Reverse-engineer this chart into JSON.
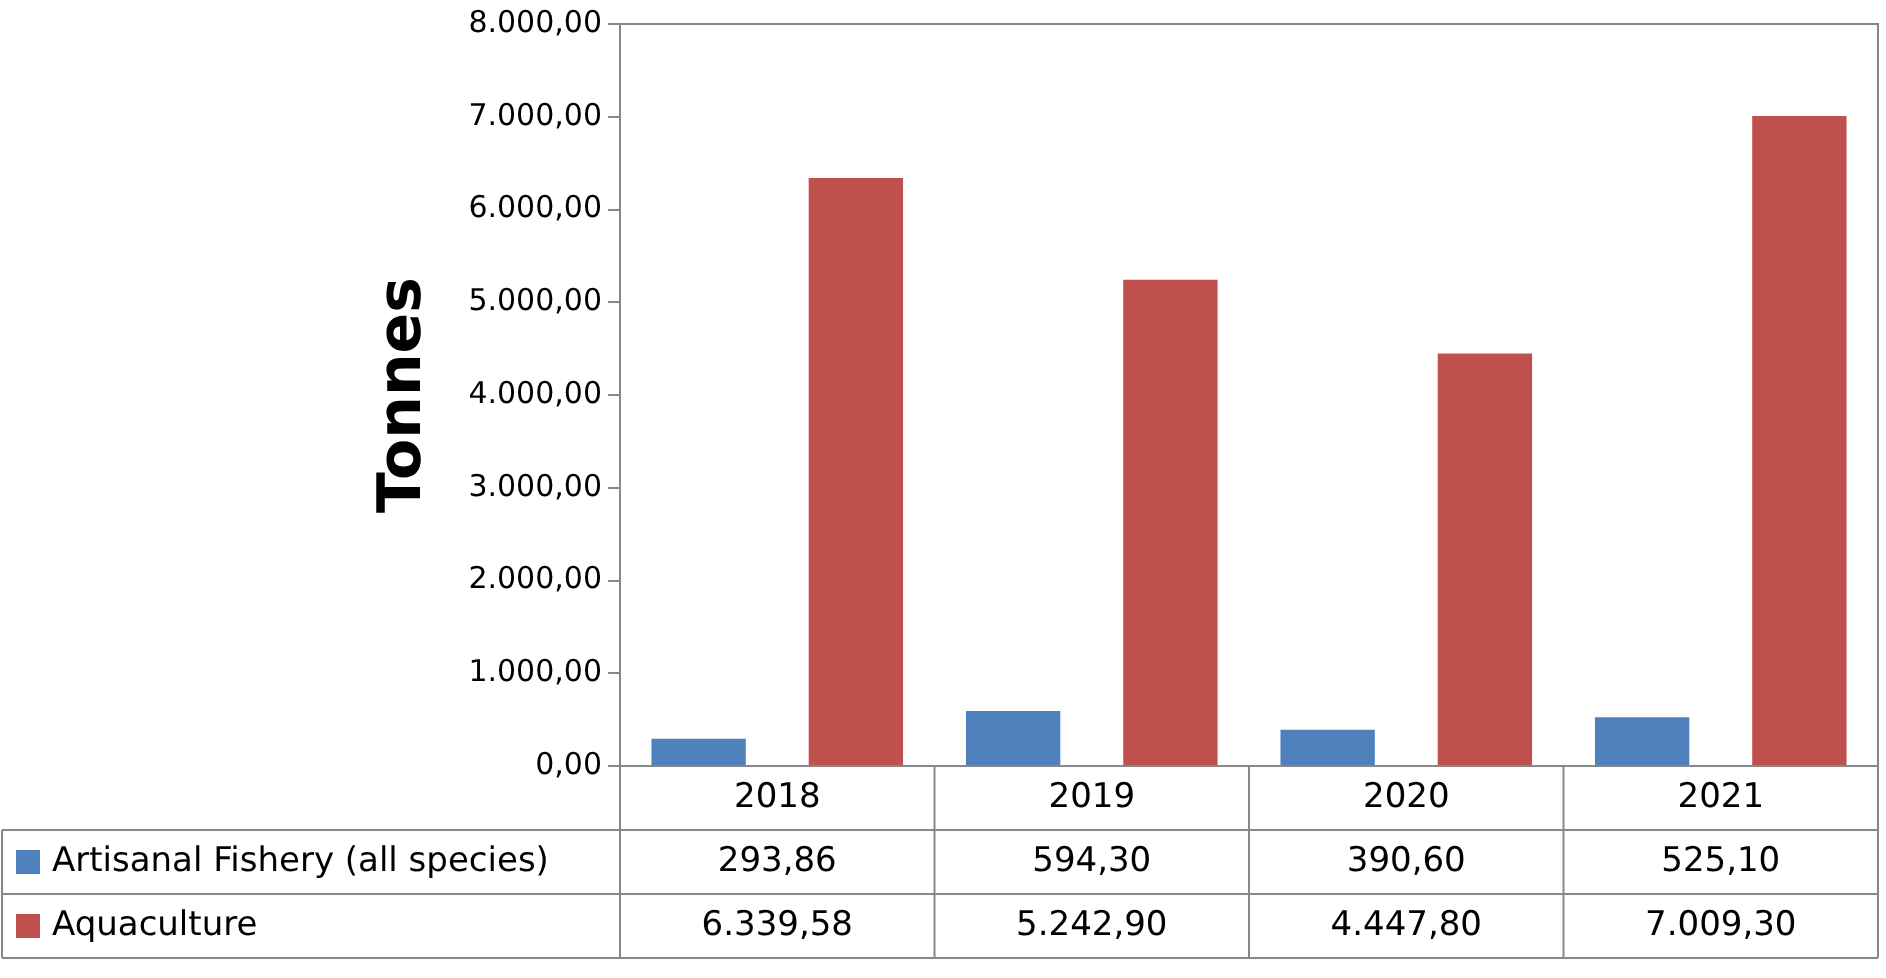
{
  "chart_data": {
    "type": "bar",
    "ylabel": "Tonnes",
    "categories": [
      "2018",
      "2019",
      "2020",
      "2021"
    ],
    "series": [
      {
        "name": "Artisanal Fishery (all species)",
        "color": "#4f81bd",
        "values": [
          293.86,
          594.3,
          390.6,
          525.1
        ],
        "value_labels": [
          "293,86",
          "594,30",
          "390,60",
          "525,10"
        ]
      },
      {
        "name": "Aquaculture",
        "color": "#c0504d",
        "values": [
          6339.58,
          5242.9,
          4447.8,
          7009.3
        ],
        "value_labels": [
          "6.339,58",
          "5.242,90",
          "4.447,80",
          "7.009,30"
        ]
      }
    ],
    "ylim": [
      0,
      8000
    ],
    "yticks": [
      {
        "value": 0,
        "label": "0,00"
      },
      {
        "value": 1000,
        "label": "1.000,00"
      },
      {
        "value": 2000,
        "label": "2.000,00"
      },
      {
        "value": 3000,
        "label": "3.000,00"
      },
      {
        "value": 4000,
        "label": "4.000,00"
      },
      {
        "value": 5000,
        "label": "5.000,00"
      },
      {
        "value": 6000,
        "label": "6.000,00"
      },
      {
        "value": 7000,
        "label": "7.000,00"
      },
      {
        "value": 8000,
        "label": "8.000,00"
      }
    ],
    "grid": false,
    "legend": "bottom"
  }
}
